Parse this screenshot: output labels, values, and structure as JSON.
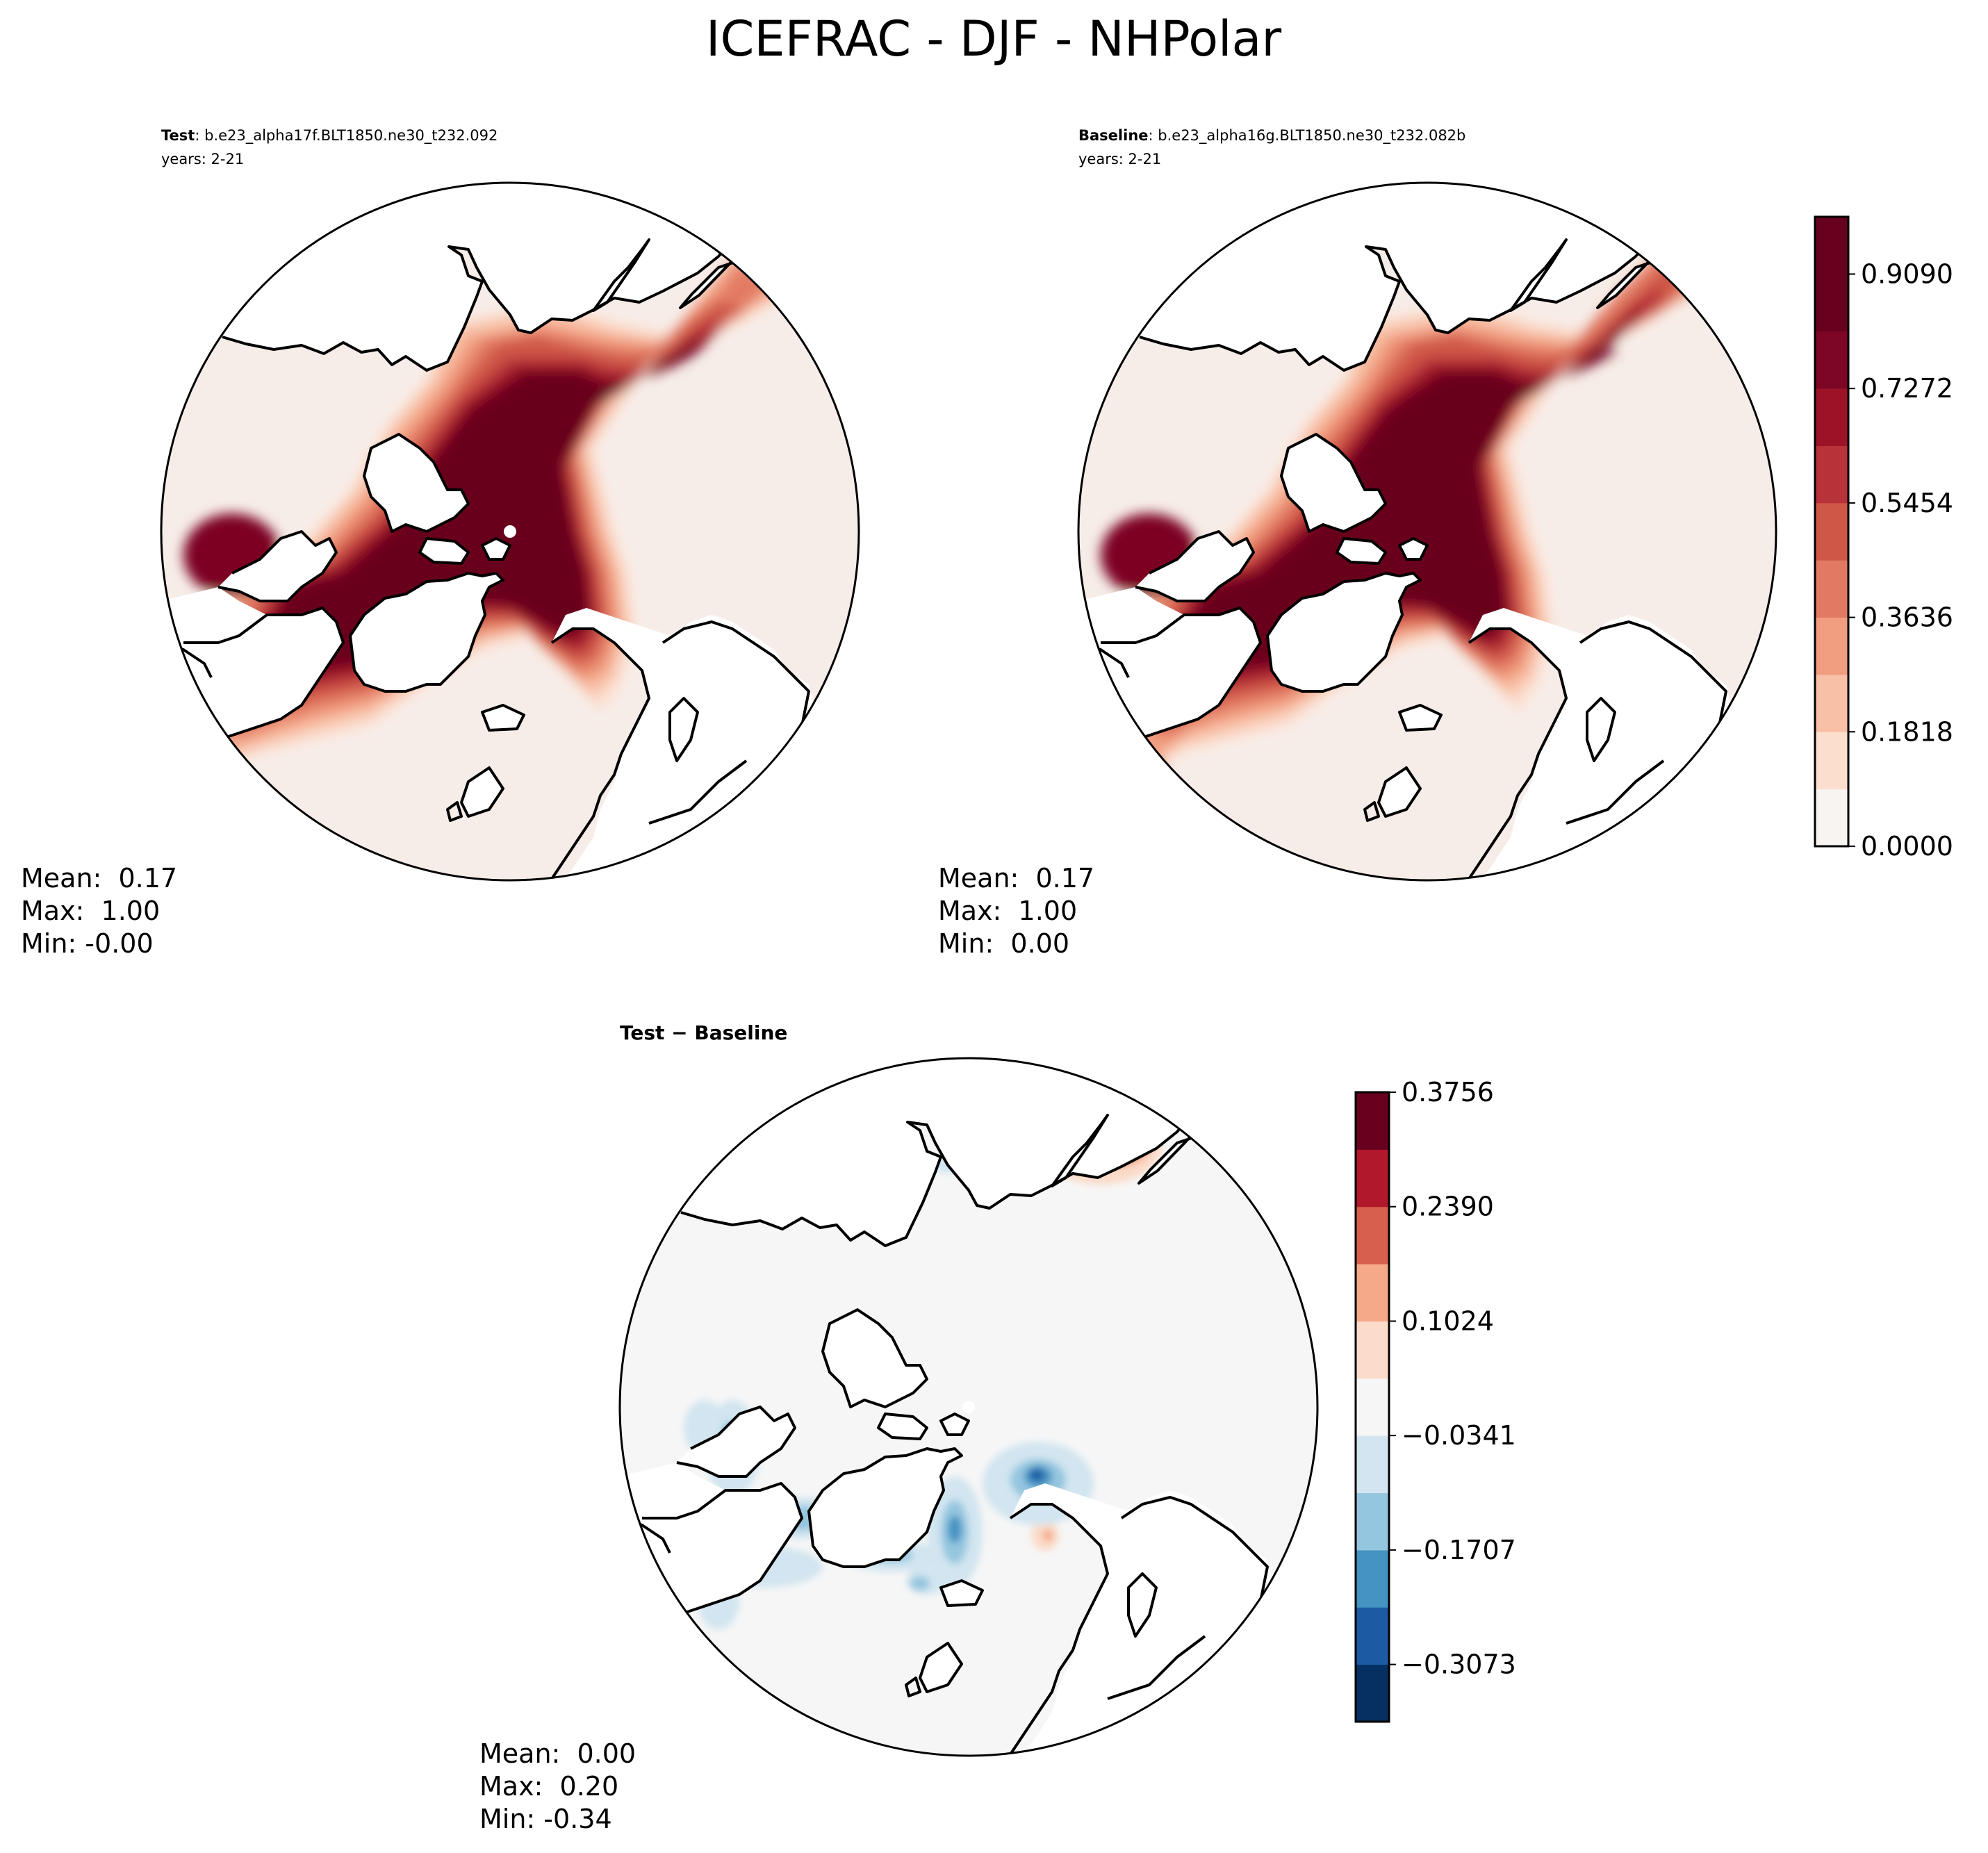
{
  "figure": {
    "title": "ICEFRAC - DJF - NHPolar"
  },
  "colors": {
    "reds": [
      "#f7f4f2",
      "#fcdecf",
      "#f8c0a6",
      "#f19d7f",
      "#e27a63",
      "#cf5747",
      "#b8323a",
      "#9c1328",
      "#7d0624",
      "#67001f"
    ],
    "diverging": [
      "#053061",
      "#1c5aa3",
      "#4493c3",
      "#94c6df",
      "#d2e5f0",
      "#f6f6f6",
      "#fbdbc9",
      "#f5a988",
      "#d6604d",
      "#b2182b",
      "#67001f"
    ],
    "background": "#f7ede8",
    "diff_background": "#f6f6f6",
    "land": "#ffffff",
    "coast": "#000000"
  },
  "chart_data": [
    {
      "id": "test",
      "type": "heatmap",
      "projection": "north-polar-stereographic",
      "title_bold": "Test",
      "title_rest": ": b.e23_alpha17f.BLT1850.ne30_t232.092",
      "subtitle": "years: 2-21",
      "variable": "ICEFRAC",
      "season": "DJF",
      "stats": {
        "mean": "Mean:  0.17",
        "max": "Max:  1.00",
        "min": "Min: -0.00"
      },
      "colorbar": {
        "ticks": [
          "0.9090",
          "0.7272",
          "0.5454",
          "0.3636",
          "0.1818",
          "0.0000"
        ],
        "levels": [
          0.0,
          0.0909,
          0.1818,
          0.2727,
          0.3636,
          0.4545,
          0.5454,
          0.6363,
          0.7272,
          0.8181,
          0.909,
          1.0
        ],
        "vmin": 0.0,
        "vmax": 1.0,
        "colormap": "Reds"
      }
    },
    {
      "id": "baseline",
      "type": "heatmap",
      "projection": "north-polar-stereographic",
      "title_bold": "Baseline",
      "title_rest": ": b.e23_alpha16g.BLT1850.ne30_t232.082b",
      "subtitle": "years: 2-21",
      "variable": "ICEFRAC",
      "season": "DJF",
      "stats": {
        "mean": "Mean:  0.17",
        "max": "Max:  1.00",
        "min": "Min:  0.00"
      }
    },
    {
      "id": "diff",
      "type": "heatmap",
      "projection": "north-polar-stereographic",
      "title": "Test − Baseline",
      "stats": {
        "mean": "Mean:  0.00",
        "max": "Max:  0.20",
        "min": "Min: -0.34"
      },
      "colorbar": {
        "ticks": [
          "0.3756",
          "0.2390",
          "0.1024",
          "−0.0341",
          "−0.1707",
          "−0.3073"
        ],
        "vmin": -0.3756,
        "vmax": 0.3756,
        "colormap": "RdBu_r",
        "levels": 11
      }
    }
  ]
}
